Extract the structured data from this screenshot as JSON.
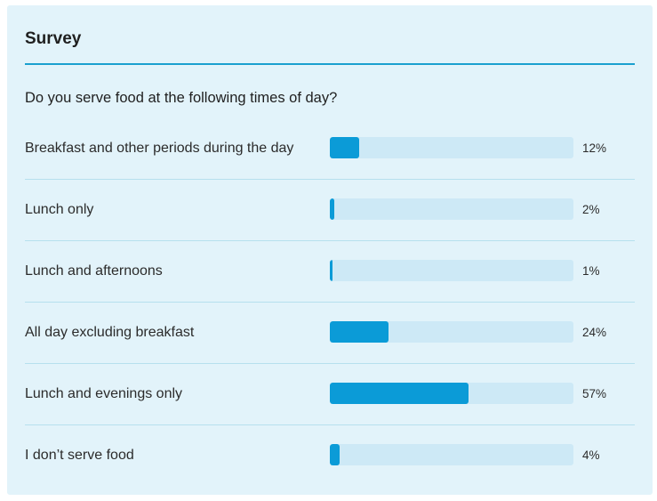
{
  "survey": {
    "title": "Survey",
    "question": "Do you serve food at the following times of day?",
    "accent_color": "#0b9bd7",
    "track_color": "#cde9f6",
    "background_color": "#e2f3fa",
    "options": [
      {
        "label": "Breakfast and other periods during the day",
        "percent": 12,
        "percent_text": "12%"
      },
      {
        "label": "Lunch only",
        "percent": 2,
        "percent_text": "2%"
      },
      {
        "label": "Lunch and afternoons",
        "percent": 1,
        "percent_text": "1%"
      },
      {
        "label": "All day excluding breakfast",
        "percent": 24,
        "percent_text": "24%"
      },
      {
        "label": "Lunch and evenings only",
        "percent": 57,
        "percent_text": "57%"
      },
      {
        "label": "I don’t serve food",
        "percent": 4,
        "percent_text": "4%"
      }
    ]
  }
}
